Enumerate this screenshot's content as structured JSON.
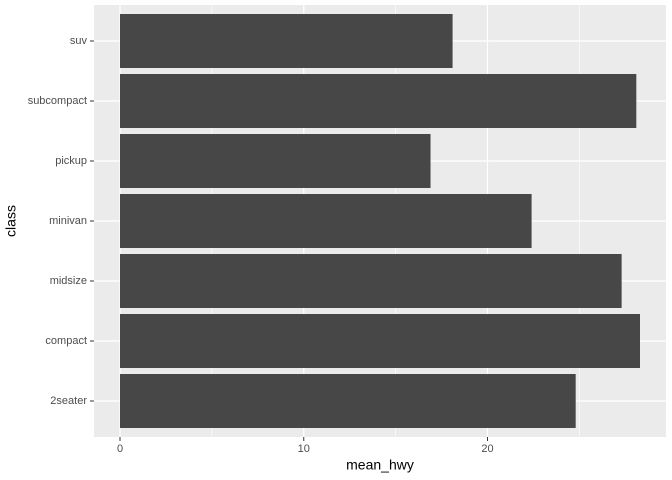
{
  "chart_data": {
    "type": "bar",
    "orientation": "horizontal",
    "x_label": "mean_hwy",
    "y_label": "class",
    "categories": [
      "2seater",
      "compact",
      "midsize",
      "minivan",
      "pickup",
      "subcompact",
      "suv"
    ],
    "values": [
      24.8,
      28.3,
      27.3,
      22.4,
      16.9,
      28.1,
      18.1
    ],
    "color": "#474747",
    "xlim": [
      -1.415,
      29.715
    ],
    "xticks": [
      0,
      10,
      20
    ],
    "x_minor_grid": [
      5,
      15,
      25
    ],
    "grid": true
  }
}
